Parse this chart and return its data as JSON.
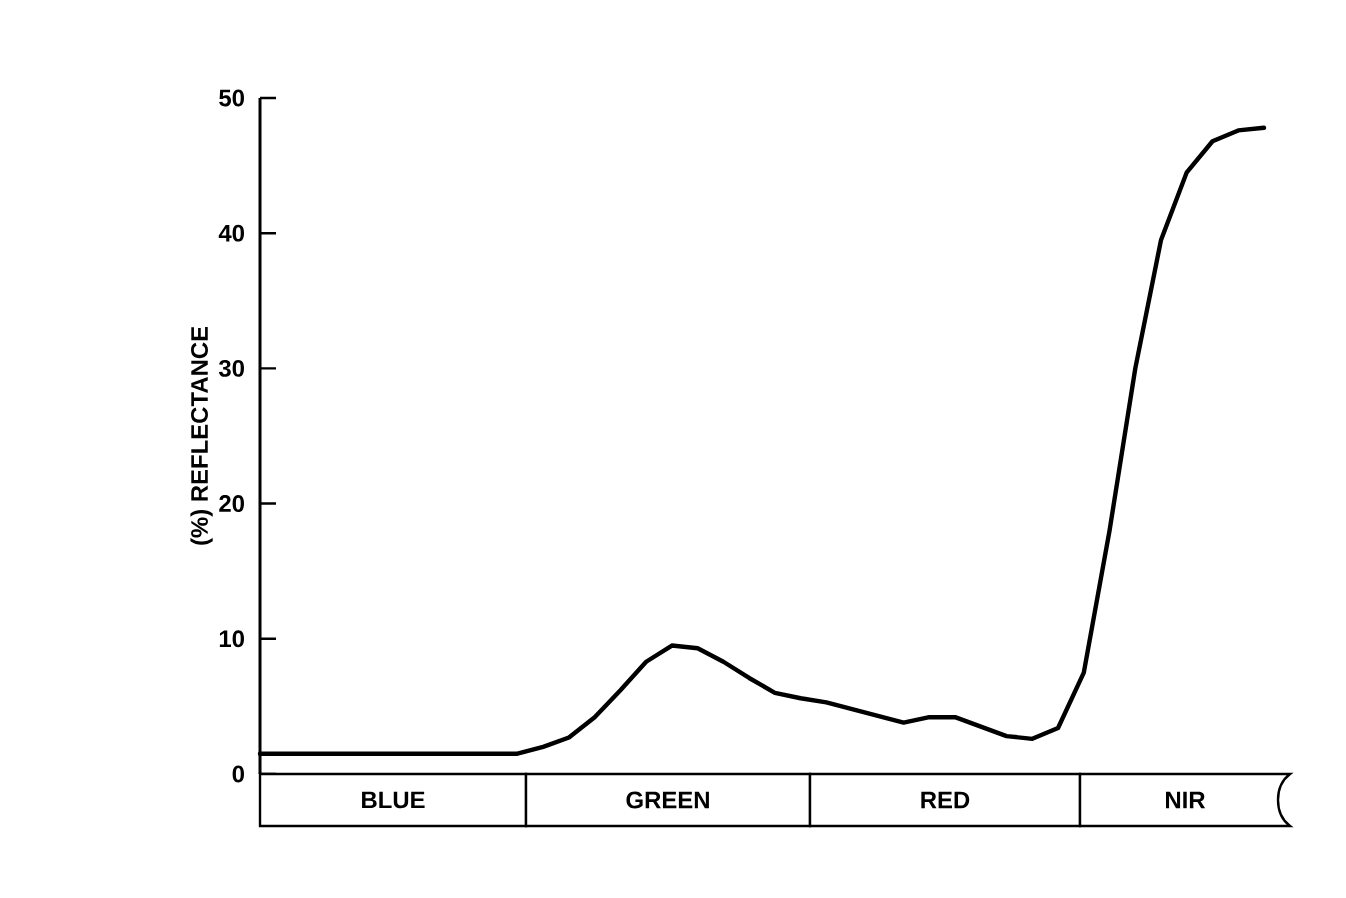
{
  "chart_data": {
    "type": "line",
    "ylabel": "(%) REFLECTANCE",
    "categories": [
      null,
      null,
      null,
      null,
      null,
      null,
      null,
      null,
      null,
      null,
      null,
      null,
      null,
      null,
      null,
      null,
      null,
      null,
      null,
      null,
      null,
      null,
      null,
      null,
      null,
      null,
      null,
      null,
      null,
      null,
      null,
      null,
      null,
      null,
      null,
      null,
      null,
      null,
      null,
      null
    ],
    "values": [
      1.5,
      1.5,
      1.5,
      1.5,
      1.5,
      1.5,
      1.5,
      1.5,
      1.5,
      1.5,
      1.5,
      2.0,
      2.7,
      4.2,
      6.2,
      8.3,
      9.5,
      9.3,
      8.3,
      7.1,
      6.0,
      5.6,
      5.3,
      4.8,
      4.3,
      3.8,
      4.2,
      4.2,
      3.5,
      2.8,
      2.6,
      3.4,
      7.5,
      18,
      30,
      39.5,
      44.5,
      46.8,
      47.6,
      47.8
    ],
    "color": "#000000",
    "marker": "none",
    "line_style": "solid",
    "ylim": [
      0,
      50
    ],
    "yticks": [
      0,
      10,
      20,
      30,
      40,
      50
    ],
    "tick_labels": "y",
    "grid": false,
    "annotations": [
      "BLUE",
      "GREEN",
      "RED",
      "NIR"
    ]
  }
}
